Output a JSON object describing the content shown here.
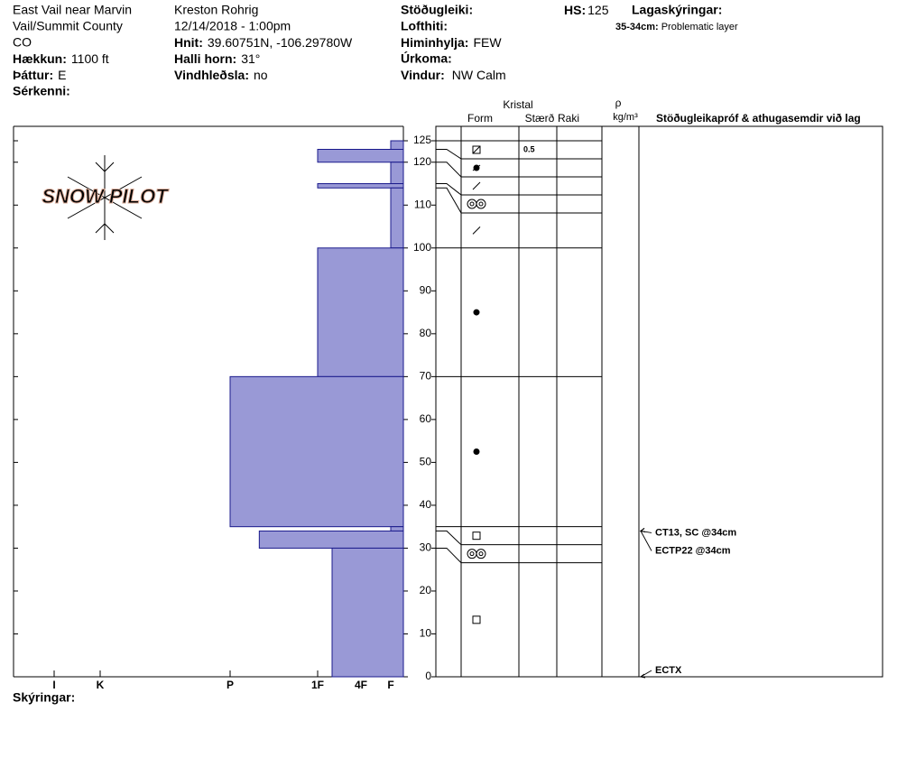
{
  "header": {
    "location": [
      "East Vail near Marvin",
      "Vail/Summit County",
      "CO"
    ],
    "elevation": {
      "label": "Hækkun:",
      "value": "1100 ft"
    },
    "aspect": {
      "label": "Þáttur:",
      "value": "E"
    },
    "features": {
      "label": "Sérkenni:"
    },
    "observer": "Kreston Rohrig",
    "datetime": "12/14/2018 - 1:00pm",
    "coordinates": {
      "label": "Hnit:",
      "value": "39.60751N, -106.29780W"
    },
    "slope": {
      "label": "Halli horn:",
      "value": "31°"
    },
    "wind_loading": {
      "label": "Vindhleðsla:",
      "value": "no"
    },
    "stability": {
      "label": "Stöðugleiki:"
    },
    "air_temp": {
      "label": "Lofthiti:"
    },
    "sky": {
      "label": "Himinhylja:",
      "value": "FEW"
    },
    "precip": {
      "label": "Úrkoma:"
    },
    "wind": {
      "label": "Vindur:",
      "value": "NW Calm"
    },
    "hs": {
      "label": "HS:",
      "value": 125
    },
    "layer_notes": {
      "label": "Lagaskýringar:",
      "items": [
        {
          "range": "35-34cm:",
          "note": "Problematic layer"
        }
      ]
    }
  },
  "columns": {
    "crystal": "Kristal",
    "form": "Form",
    "size": "Stærð",
    "moisture": "Raki",
    "density": "ρ",
    "density_unit": "kg/m³",
    "tests": "Stöðugleikapróf & athugasemdir við lag"
  },
  "logo": "SNOW PILOT",
  "footer": "Skýringar:",
  "chart_data": {
    "type": "snow-profile",
    "ylim": [
      0,
      125
    ],
    "yticks": [
      0,
      10,
      20,
      30,
      40,
      50,
      60,
      70,
      80,
      90,
      100,
      110,
      120,
      125
    ],
    "hardness_ticks": [
      "I",
      "K",
      "P",
      "1F",
      "4F",
      "F"
    ],
    "color": "#9999d6",
    "layers": [
      {
        "top": 125,
        "bottom": 123,
        "hardness": "F",
        "form": "FCxr",
        "size": 0.5
      },
      {
        "top": 123,
        "bottom": 120,
        "hardness": "1F",
        "form": "RGxf"
      },
      {
        "top": 120,
        "bottom": 115,
        "hardness": "F",
        "form": "DF"
      },
      {
        "top": 115,
        "bottom": 114,
        "hardness": "1F",
        "form": "MF"
      },
      {
        "top": 114,
        "bottom": 100,
        "hardness": "F",
        "form": "DF"
      },
      {
        "top": 100,
        "bottom": 70,
        "hardness": "1F",
        "form": "RG"
      },
      {
        "top": 70,
        "bottom": 35,
        "hardness": "P",
        "form": "RG"
      },
      {
        "top": 35,
        "bottom": 34,
        "hardness": "F",
        "form": "FC"
      },
      {
        "top": 34,
        "bottom": 30,
        "hardness": "P-",
        "form": "MF"
      },
      {
        "top": 30,
        "bottom": 0,
        "hardness": "1F-",
        "form": "FC"
      }
    ],
    "tests": [
      {
        "label": "CT13, SC @34cm",
        "depth": 34
      },
      {
        "label": "ECTP22 @34cm",
        "depth": 34
      },
      {
        "label": "ECTX",
        "depth": 0
      }
    ]
  }
}
